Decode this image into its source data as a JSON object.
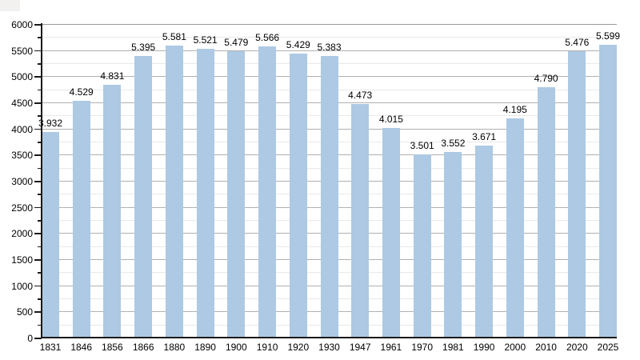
{
  "chart_data": {
    "type": "bar",
    "title": "",
    "xlabel": "",
    "ylabel": "",
    "categories": [
      "1831",
      "1846",
      "1856",
      "1866",
      "1880",
      "1890",
      "1900",
      "1910",
      "1920",
      "1930",
      "1947",
      "1961",
      "1970",
      "1981",
      "1990",
      "2000",
      "2010",
      "2020",
      "2025"
    ],
    "values": [
      3932,
      4529,
      4831,
      5395,
      5581,
      5521,
      5479,
      5566,
      5429,
      5383,
      4473,
      4015,
      3501,
      3552,
      3671,
      4195,
      4790,
      5476,
      5599
    ],
    "value_labels": [
      "3.932",
      "4.529",
      "4.831",
      "5.395",
      "5.581",
      "5.521",
      "5.479",
      "5.566",
      "5.429",
      "5.383",
      "4.473",
      "4.015",
      "3.501",
      "3.552",
      "3.671",
      "4.195",
      "4.790",
      "5.476",
      "5.599"
    ],
    "ylim": [
      0,
      6000
    ],
    "y_major_step": 500,
    "y_minor_step": 250,
    "y_tick_labels": [
      "0",
      "500",
      "1000",
      "1500",
      "2000",
      "2500",
      "3000",
      "3500",
      "4000",
      "4500",
      "5000",
      "5500",
      "6000"
    ],
    "grid": true,
    "legend_position": "none"
  },
  "colors": {
    "bar_fill": "#adc9e3",
    "grid_major": "#b0b0b0",
    "grid_minor": "#e8e8e8",
    "grid_top": "#9a9a9a",
    "axis": "#1a1a1a",
    "text": "#000000",
    "background": "#ffffff",
    "corner_artifact": "#f2f1ef"
  }
}
